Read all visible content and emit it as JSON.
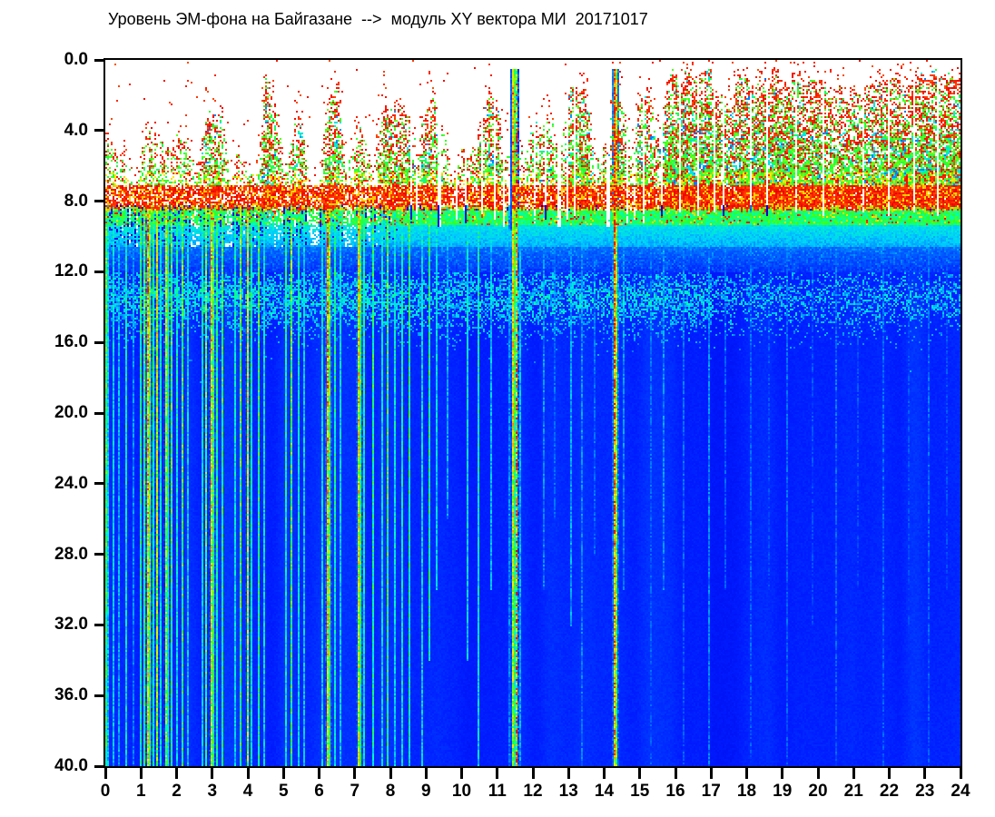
{
  "title": "Уровень ЭМ-фона на Байгазане  -->  модуль XY вектора МИ  20171017",
  "chart_data": {
    "type": "heatmap",
    "subtype": "spectrogram",
    "title": "Уровень ЭМ-фона на Байгазане  -->  модуль XY вектора МИ  20171017",
    "x_axis": {
      "range": [
        0,
        24
      ],
      "ticks": [
        "0",
        "1",
        "2",
        "3",
        "4",
        "5",
        "6",
        "7",
        "8",
        "9",
        "10",
        "11",
        "12",
        "13",
        "14",
        "15",
        "16",
        "17",
        "18",
        "19",
        "20",
        "21",
        "22",
        "23",
        "24"
      ]
    },
    "y_axis": {
      "range": [
        0,
        40
      ],
      "inverted": true,
      "ticks": [
        "0.0",
        "4.0",
        "8.0",
        "12.0",
        "16.0",
        "20.0",
        "24.0",
        "28.0",
        "32.0",
        "36.0",
        "40.0"
      ]
    },
    "grid": false,
    "legend": "none",
    "no_signal_color": "#ffffff",
    "colormap_stops": [
      [
        0.055,
        [
          0,
          0,
          170
        ]
      ],
      [
        0.12,
        [
          0,
          0,
          225
        ]
      ],
      [
        0.2,
        [
          0,
          28,
          255
        ]
      ],
      [
        0.3,
        [
          0,
          110,
          255
        ]
      ],
      [
        0.4,
        [
          0,
          205,
          255
        ]
      ],
      [
        0.5,
        [
          0,
          255,
          180
        ]
      ],
      [
        0.58,
        [
          40,
          255,
          40
        ]
      ],
      [
        0.68,
        [
          170,
          255,
          0
        ]
      ],
      [
        0.76,
        [
          255,
          232,
          0
        ]
      ],
      [
        0.85,
        [
          255,
          150,
          0
        ]
      ],
      [
        0.93,
        [
          255,
          45,
          0
        ]
      ],
      [
        1.0,
        [
          232,
          0,
          0
        ]
      ]
    ],
    "seed": 20171017,
    "background_level": 0.205,
    "bands": {
      "surface_noise_top": {
        "f0": 0.5,
        "f1": 7.0,
        "desc": "red-speckled atmospheric bursts, green/cyan cores"
      },
      "red_band": {
        "f0": 7.0,
        "f1": 8.45
      },
      "green_band": {
        "f0": 8.45,
        "f1": 9.35
      },
      "cyan_fade": {
        "f0": 9.35,
        "f1": 12.0
      },
      "mid_cyan_speckle_band": {
        "center": 13.4,
        "sigma": 1.15,
        "amp": 1.0,
        "weaker_after_hour": 17
      }
    },
    "activity": [
      0.55,
      0.5,
      0.45,
      0.2,
      0.5,
      0.55,
      0.5,
      0.45,
      0.5,
      0.55,
      0.3,
      0.85,
      0.9,
      0.8,
      0.25,
      0.5,
      0.45,
      0.3,
      0.85,
      0.8,
      0.35,
      0.7,
      0.65,
      0.25,
      0.3,
      0.85,
      0.8,
      0.3,
      0.6,
      0.55,
      0.35,
      0.8,
      0.85,
      0.8,
      0.7,
      0.4,
      0.7,
      0.65,
      0.5,
      0.3,
      0.6,
      0.55,
      0.8,
      0.85,
      0.7,
      0.45,
      0.5,
      0.3,
      0.75,
      0.8,
      0.7,
      0.4,
      0.85,
      0.9,
      0.8,
      0.45,
      0.5,
      0.75,
      0.7,
      0.4,
      0.8,
      0.75,
      0.5,
      0.9,
      0.95,
      0.9,
      0.85,
      0.9,
      0.95,
      0.85,
      0.9,
      0.95,
      0.9,
      0.85,
      0.9,
      0.95,
      0.9,
      0.95,
      0.9,
      0.85,
      0.95,
      0.9,
      0.95,
      0.9,
      0.85,
      0.9,
      0.95,
      0.9,
      0.95,
      0.9,
      0.85,
      0.95,
      0.9,
      0.95,
      0.9,
      0.95
    ],
    "streaks": [
      {
        "t": 0.02,
        "a": 0.6,
        "w": 2
      },
      {
        "t": 0.22,
        "a": 0.45
      },
      {
        "t": 0.38,
        "a": 0.4
      },
      {
        "t": 0.55,
        "a": 0.5
      },
      {
        "t": 0.75,
        "a": 0.35
      },
      {
        "t": 0.95,
        "a": 0.55
      },
      {
        "t": 1.06,
        "a": 0.6
      },
      {
        "t": 1.18,
        "a": 0.85,
        "w": 2
      },
      {
        "t": 1.3,
        "a": 0.55
      },
      {
        "t": 1.42,
        "a": 0.75
      },
      {
        "t": 1.55,
        "a": 0.5
      },
      {
        "t": 1.7,
        "a": 0.72,
        "w": 2
      },
      {
        "t": 1.85,
        "a": 0.6
      },
      {
        "t": 2.0,
        "a": 0.5
      },
      {
        "t": 2.12,
        "a": 0.62
      },
      {
        "t": 2.3,
        "a": 0.45
      },
      {
        "t": 2.68,
        "a": 0.5
      },
      {
        "t": 2.82,
        "a": 0.62
      },
      {
        "t": 2.98,
        "a": 0.8,
        "w": 2
      },
      {
        "t": 3.12,
        "a": 0.55
      },
      {
        "t": 3.28,
        "a": 0.58
      },
      {
        "t": 3.62,
        "a": 0.48
      },
      {
        "t": 3.78,
        "a": 0.62
      },
      {
        "t": 3.95,
        "a": 0.75
      },
      {
        "t": 4.1,
        "a": 0.52
      },
      {
        "t": 4.28,
        "a": 0.58
      },
      {
        "t": 4.45,
        "a": 0.48
      },
      {
        "t": 5.05,
        "a": 0.52
      },
      {
        "t": 5.2,
        "a": 0.62
      },
      {
        "t": 5.38,
        "a": 0.5
      },
      {
        "t": 5.55,
        "a": 0.44
      },
      {
        "t": 6.05,
        "a": 0.48
      },
      {
        "t": 6.22,
        "a": 0.85,
        "w": 2
      },
      {
        "t": 6.4,
        "a": 0.52
      },
      {
        "t": 6.55,
        "a": 0.46
      },
      {
        "t": 7.08,
        "a": 0.8,
        "w": 2
      },
      {
        "t": 7.25,
        "a": 0.52
      },
      {
        "t": 7.5,
        "a": 0.56
      },
      {
        "t": 7.72,
        "a": 0.48
      },
      {
        "t": 7.92,
        "a": 0.6
      },
      {
        "t": 8.1,
        "a": 0.48
      },
      {
        "t": 8.32,
        "a": 0.52
      },
      {
        "t": 8.5,
        "a": 0.55
      },
      {
        "t": 8.85,
        "a": 0.46
      },
      {
        "t": 9.05,
        "a": 0.55,
        "d": 34
      },
      {
        "t": 9.25,
        "a": 0.45,
        "d": 30
      },
      {
        "t": 9.6,
        "a": 0.38,
        "d": 26
      },
      {
        "t": 10.15,
        "a": 0.46,
        "d": 34
      },
      {
        "t": 10.45,
        "a": 0.5
      },
      {
        "t": 10.8,
        "a": 0.4,
        "d": 30
      },
      {
        "t": 11.3,
        "a": 0.35
      },
      {
        "t": 11.39,
        "a": 0.78,
        "w": 2,
        "full": true
      },
      {
        "t": 11.53,
        "a": 0.88,
        "full": true,
        "dot": true
      },
      {
        "t": 11.62,
        "a": 0.4
      },
      {
        "t": 12.3,
        "a": 0.34,
        "d": 30
      },
      {
        "t": 12.6,
        "a": 0.3,
        "d": 26
      },
      {
        "t": 13.05,
        "a": 0.38,
        "d": 32
      },
      {
        "t": 13.35,
        "a": 0.34
      },
      {
        "t": 13.7,
        "a": 0.3,
        "d": 28
      },
      {
        "t": 14.25,
        "a": 0.92,
        "w": 2,
        "full": true
      },
      {
        "t": 14.5,
        "a": 0.34,
        "d": 30
      },
      {
        "t": 15.3,
        "a": 0.3
      },
      {
        "t": 15.65,
        "a": 0.34,
        "d": 30
      },
      {
        "t": 16.2,
        "a": 0.3
      },
      {
        "t": 16.9,
        "a": 0.34
      },
      {
        "t": 17.4,
        "a": 0.28,
        "d": 30
      },
      {
        "t": 18.1,
        "a": 0.3
      },
      {
        "t": 18.6,
        "a": 0.26,
        "d": 30
      },
      {
        "t": 19.1,
        "a": 0.3
      },
      {
        "t": 19.8,
        "a": 0.26,
        "d": 32
      },
      {
        "t": 20.5,
        "a": 0.3
      },
      {
        "t": 21.1,
        "a": 0.26,
        "d": 30
      },
      {
        "t": 21.8,
        "a": 0.3
      },
      {
        "t": 22.5,
        "a": 0.26,
        "d": 32
      },
      {
        "t": 23.1,
        "a": 0.3
      },
      {
        "t": 23.6,
        "a": 0.26,
        "d": 30
      }
    ],
    "white_gaps": [
      {
        "t": 8.55,
        "d": 9.2
      },
      {
        "t": 8.72,
        "d": 9.0
      },
      {
        "t": 9.35,
        "d": 9.4,
        "w": 2
      },
      {
        "t": 9.85,
        "d": 9.0
      },
      {
        "t": 10.07,
        "d": 9.2
      },
      {
        "t": 10.55,
        "d": 8.8
      },
      {
        "t": 10.92,
        "d": 9.0
      },
      {
        "t": 11.18,
        "d": 9.4
      },
      {
        "t": 11.3,
        "d": 9.6,
        "w": 2
      },
      {
        "t": 12.05,
        "d": 9.2
      },
      {
        "t": 12.35,
        "d": 9.0
      },
      {
        "t": 12.68,
        "d": 9.4,
        "w": 2
      },
      {
        "t": 12.92,
        "d": 9.0
      },
      {
        "t": 13.15,
        "d": 8.8
      },
      {
        "t": 14.08,
        "d": 9.4,
        "w": 2
      },
      {
        "t": 14.6,
        "d": 9.2
      },
      {
        "t": 14.85,
        "d": 9.0
      },
      {
        "t": 15.1,
        "d": 9.2
      },
      {
        "t": 15.6,
        "d": 8.8
      },
      {
        "t": 16.12,
        "d": 8.6
      },
      {
        "t": 16.6,
        "d": 8.8
      },
      {
        "t": 17.05,
        "d": 8.6
      },
      {
        "t": 17.35,
        "d": 8.8
      },
      {
        "t": 18.1,
        "d": 8.6
      },
      {
        "t": 18.55,
        "d": 8.8
      },
      {
        "t": 19.35,
        "d": 8.6
      },
      {
        "t": 20.15,
        "d": 8.8
      },
      {
        "t": 21.25,
        "d": 8.6
      },
      {
        "t": 21.95,
        "d": 8.8
      },
      {
        "t": 22.65,
        "d": 8.6
      },
      {
        "t": 23.35,
        "d": 8.8
      }
    ]
  }
}
